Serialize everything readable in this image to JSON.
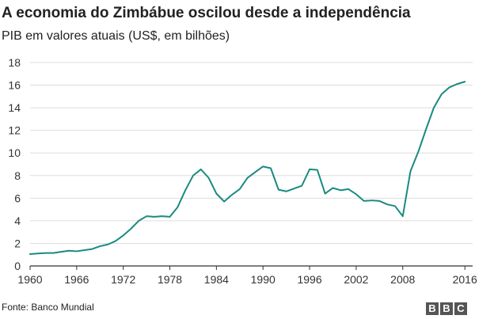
{
  "header": {
    "title": "A economia do Zimbábue oscilou desde a independência",
    "subtitle": "PIB em valores atuais (US$, em bilhões)"
  },
  "footer": {
    "source": "Fonte: Banco Mundial",
    "logo_letters": [
      "B",
      "B",
      "C"
    ]
  },
  "colors": {
    "line": "#1a8a80",
    "grid": "#dddddd",
    "axis": "#333333"
  },
  "chart_data": {
    "type": "line",
    "title": "A economia do Zimbábue oscilou desde a independência",
    "subtitle": "PIB em valores atuais (US$, em bilhões)",
    "xlabel": "",
    "ylabel": "",
    "xlim": [
      1960,
      2017
    ],
    "ylim": [
      0,
      18
    ],
    "x_ticks": [
      1960,
      1966,
      1972,
      1978,
      1984,
      1990,
      1996,
      2002,
      2008,
      2016
    ],
    "y_ticks": [
      0,
      2,
      4,
      6,
      8,
      10,
      12,
      14,
      16,
      18
    ],
    "grid": "horizontal",
    "series": [
      {
        "name": "PIB",
        "x": [
          1960,
          1961,
          1962,
          1963,
          1964,
          1965,
          1966,
          1967,
          1968,
          1969,
          1970,
          1971,
          1972,
          1973,
          1974,
          1975,
          1976,
          1977,
          1978,
          1979,
          1980,
          1981,
          1982,
          1983,
          1984,
          1985,
          1986,
          1987,
          1988,
          1989,
          1990,
          1991,
          1992,
          1993,
          1994,
          1995,
          1996,
          1997,
          1998,
          1999,
          2000,
          2001,
          2002,
          2003,
          2004,
          2005,
          2006,
          2007,
          2008,
          2009,
          2010,
          2011,
          2012,
          2013,
          2014,
          2015,
          2016
        ],
        "values": [
          1.05,
          1.1,
          1.15,
          1.15,
          1.25,
          1.35,
          1.3,
          1.4,
          1.5,
          1.75,
          1.9,
          2.2,
          2.7,
          3.3,
          4.0,
          4.4,
          4.35,
          4.4,
          4.35,
          5.2,
          6.7,
          8.0,
          8.55,
          7.8,
          6.4,
          5.7,
          6.3,
          6.8,
          7.8,
          8.3,
          8.8,
          8.65,
          6.75,
          6.6,
          6.85,
          7.1,
          8.55,
          8.5,
          6.4,
          6.9,
          6.7,
          6.8,
          6.35,
          5.75,
          5.8,
          5.75,
          5.45,
          5.3,
          4.4,
          8.4,
          10.1,
          12.1,
          14.0,
          15.2,
          15.8,
          16.1,
          16.3
        ]
      }
    ]
  }
}
